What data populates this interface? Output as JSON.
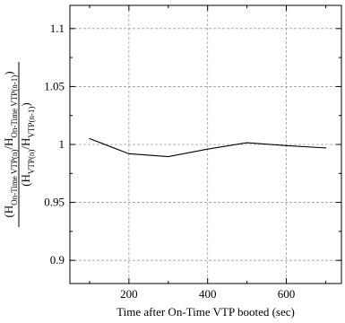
{
  "chart_data": {
    "type": "line",
    "xlabel": "Time after On-Time VTP booted (sec)",
    "ylabel": {
      "numerator": "(H_On-Time VTP(n)/H_On-Time VTP(n-1))",
      "denominator": "(H_VTP(n)/H_VTP(n-1))"
    },
    "xlim": [
      50,
      740
    ],
    "ylim": [
      0.88,
      1.12
    ],
    "xticks": [
      200,
      400,
      600
    ],
    "xtick_labels": [
      "200",
      "400",
      "600"
    ],
    "yticks": [
      0.9,
      0.95,
      1.0,
      1.05,
      1.1
    ],
    "ytick_labels": [
      "0.9",
      "0.95",
      "1",
      "1.05",
      "1.1"
    ],
    "grid": true,
    "series": [
      {
        "x": [
          100,
          200,
          300,
          400,
          500,
          600,
          700
        ],
        "y": [
          1.005,
          0.992,
          0.9895,
          0.996,
          1.0015,
          0.999,
          0.997
        ]
      }
    ]
  }
}
